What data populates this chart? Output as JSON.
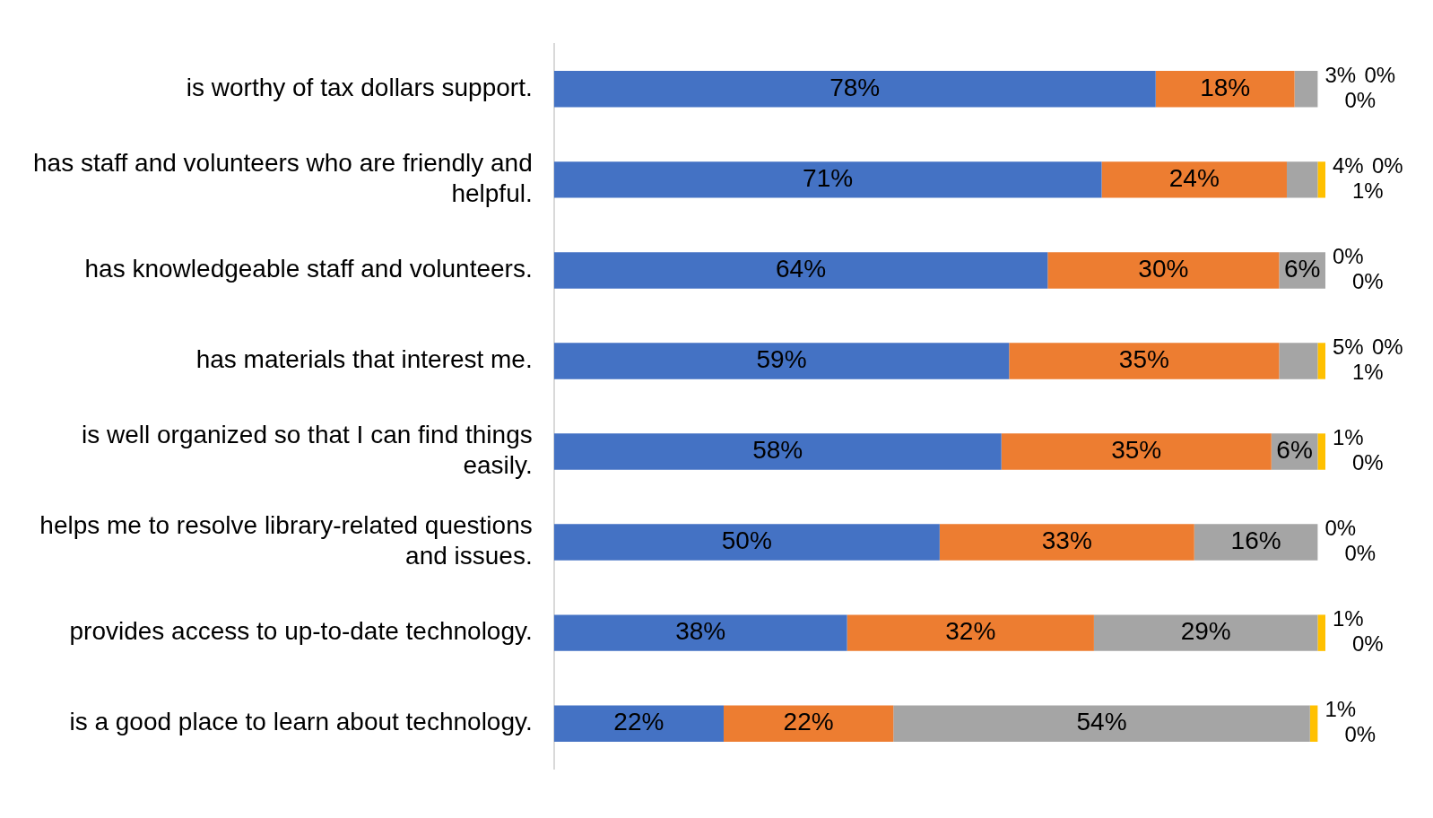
{
  "chart_data": {
    "type": "bar",
    "orientation": "horizontal",
    "stacked": true,
    "legend": false,
    "categories": [
      "is worthy of tax dollars support.",
      "has staff and volunteers who are friendly and helpful.",
      "has knowledgeable staff and volunteers.",
      "has materials that interest me.",
      "is well organized so that I can find things easily.",
      "helps me to resolve library-related questions and issues.",
      "provides access to up-to-date technology.",
      "is a good place to learn about technology."
    ],
    "series": [
      {
        "color": "#4472c4",
        "values": [
          78,
          71,
          64,
          59,
          58,
          50,
          38,
          22
        ],
        "value_labels": [
          "78%",
          "71%",
          "64%",
          "59%",
          "58%",
          "50%",
          "38%",
          "22%"
        ]
      },
      {
        "color": "#ed7d31",
        "values": [
          18,
          24,
          30,
          35,
          35,
          33,
          32,
          22
        ],
        "value_labels": [
          "18%",
          "24%",
          "30%",
          "35%",
          "35%",
          "33%",
          "32%",
          "22%"
        ]
      },
      {
        "color": "#a5a5a5",
        "values": [
          3,
          4,
          6,
          5,
          6,
          16,
          29,
          54
        ],
        "value_labels": [
          "3%",
          "4%",
          "6%",
          "5%",
          "6%",
          "16%",
          "29%",
          "54%"
        ]
      },
      {
        "color": "#ffc000",
        "values": [
          0,
          1,
          0,
          1,
          1,
          0,
          1,
          1
        ],
        "value_labels": [
          "0%",
          "1%",
          "0%",
          "1%",
          "1%",
          "0%",
          "1%",
          "1%"
        ]
      },
      {
        "color": "#5b9bd5",
        "values": [
          0,
          0,
          0,
          0,
          0,
          0,
          0,
          0
        ],
        "value_labels": [
          "0%",
          "0%",
          "0%",
          "0%",
          "0%",
          "0%",
          "0%",
          "0%"
        ]
      }
    ]
  }
}
